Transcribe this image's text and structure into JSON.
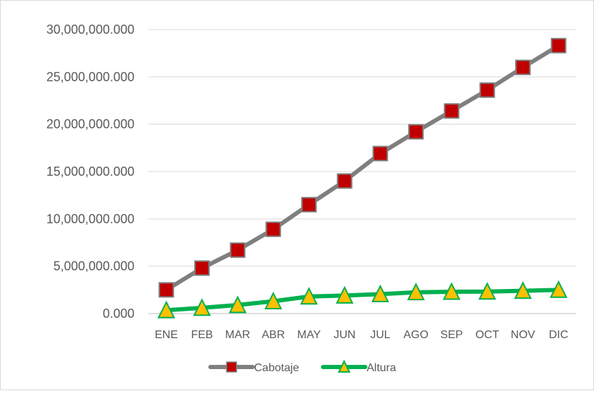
{
  "chart_data": {
    "type": "line",
    "categories": [
      "ENE",
      "FEB",
      "MAR",
      "ABR",
      "MAY",
      "JUN",
      "JUL",
      "AGO",
      "SEP",
      "OCT",
      "NOV",
      "DIC"
    ],
    "series": [
      {
        "name": "Cabotaje",
        "values": [
          2500000,
          4800000,
          6700000,
          8900000,
          11500000,
          14000000,
          16900000,
          19200000,
          21400000,
          23600000,
          26000000,
          28300000
        ],
        "line_color": "#7f7f7f",
        "marker": "square",
        "marker_color": "#c00000"
      },
      {
        "name": "Altura",
        "values": [
          350000,
          600000,
          900000,
          1300000,
          1800000,
          1900000,
          2050000,
          2250000,
          2300000,
          2320000,
          2400000,
          2500000
        ],
        "line_color": "#00b050",
        "marker": "triangle",
        "marker_color": "#ffc000"
      }
    ],
    "y_tick_labels": [
      "0.000",
      "5,000,000.000",
      "10,000,000.000",
      "15,000,000.000",
      "20,000,000.000",
      "25,000,000.000",
      "30,000,000.000"
    ],
    "ylim": [
      0,
      30000000
    ],
    "y_tick_step": 5000000,
    "title": "",
    "xlabel": "",
    "ylabel": "",
    "grid": "horizontal",
    "legend": "bottom-center"
  }
}
